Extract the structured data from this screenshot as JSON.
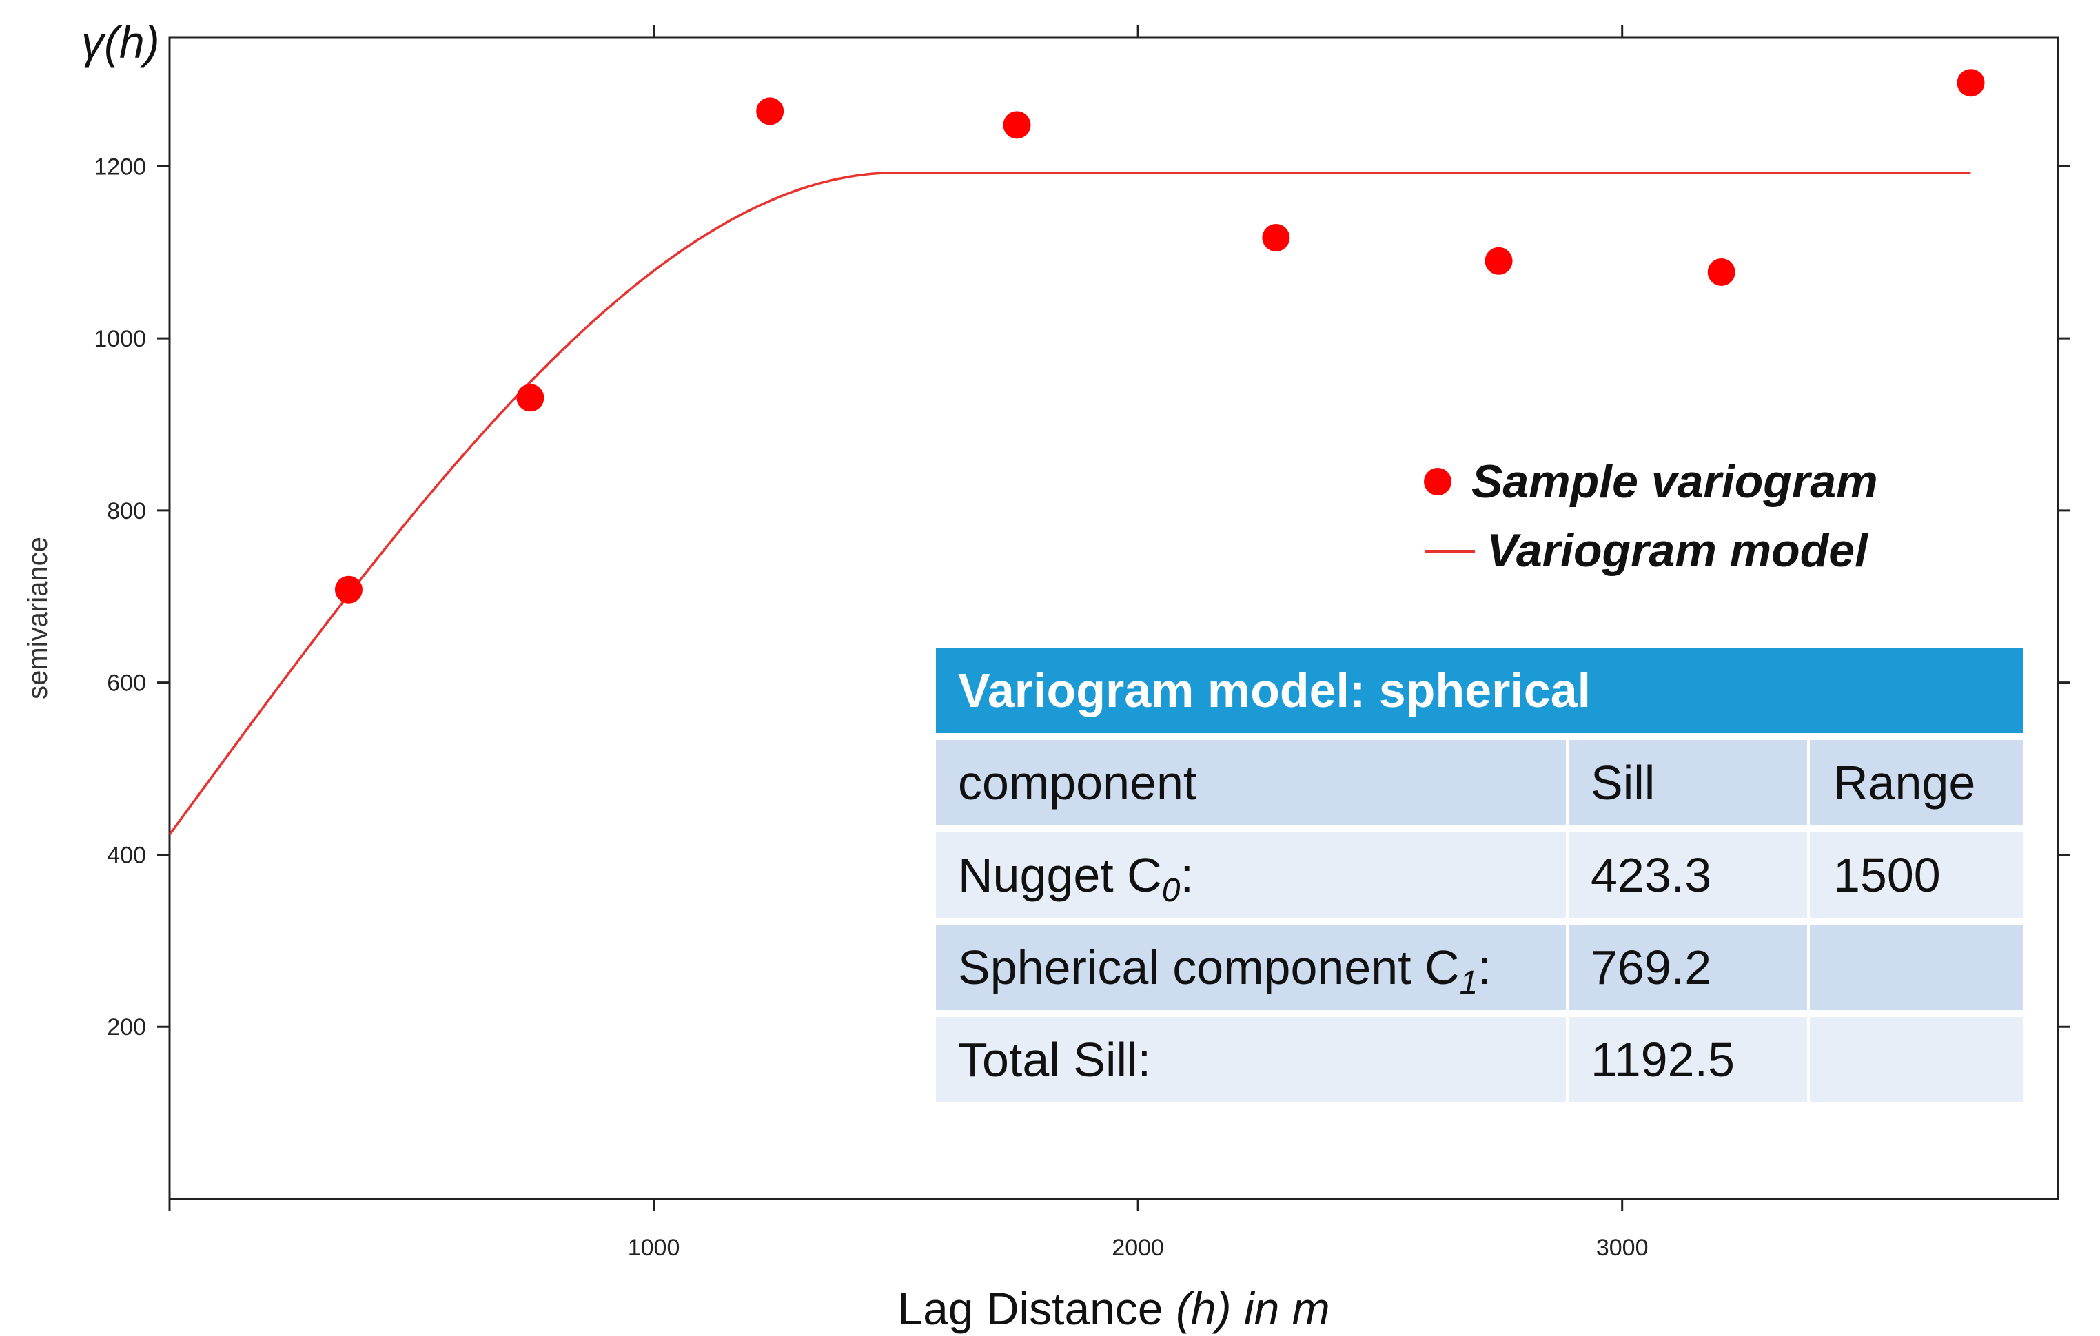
{
  "chart_data": {
    "type": "scatter",
    "xlabel": {
      "prefix": "Lag Distance ",
      "var": "(h)",
      "suffix": " in m"
    },
    "ylabel": "semivariance",
    "y_axis_title": "γ(h)",
    "xlim": [
      0,
      3900
    ],
    "ylim": [
      0,
      1350
    ],
    "x_ticks": [
      1000,
      2000,
      3000
    ],
    "y_ticks": [
      200,
      400,
      600,
      800,
      1000,
      1200
    ],
    "grid": false,
    "legend_position": "center-right",
    "colors": {
      "points": "#ff0000",
      "line": "#e8322f",
      "table_header": "#1b9ad6",
      "row_dark": "#cddcef",
      "row_light": "#e8eef7"
    },
    "series": [
      {
        "name": "Sample variogram",
        "type": "scatter",
        "x": [
          370,
          745,
          1240,
          1750,
          2285,
          2745,
          3205,
          3720
        ],
        "y": [
          708,
          931,
          1264,
          1248,
          1117,
          1090,
          1077,
          1297
        ]
      },
      {
        "name": "Variogram model",
        "type": "line",
        "model": "spherical",
        "nugget": 423.3,
        "partial_sill": 769.2,
        "range": 1500,
        "x_end": 3720
      }
    ],
    "table": {
      "title": "Variogram model: spherical",
      "headers": [
        "component",
        "Sill",
        "Range"
      ],
      "rows": [
        {
          "label": "Nugget C",
          "sub": "0",
          "sill": "423.3",
          "range": "1500"
        },
        {
          "label": "Spherical component C",
          "sub": "1",
          "sill": "769.2",
          "range": ""
        },
        {
          "label": "Total Sill:",
          "sub": "",
          "sill": "1192.5",
          "range": ""
        }
      ]
    }
  }
}
